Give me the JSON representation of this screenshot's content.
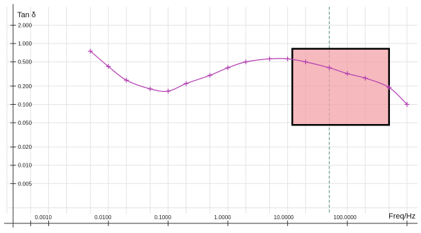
{
  "chart_data": {
    "type": "line",
    "x_scale": "log",
    "y_scale": "log",
    "ylabel": "Tan δ",
    "xlabel": "Freq/Hz",
    "grid": true,
    "x_tick_labels": [
      "0.0010",
      "0.0100",
      "0.1000",
      "1.0000",
      "10.0000",
      "100.0000"
    ],
    "x_tick_values": [
      0.001,
      0.01,
      0.1,
      1,
      10,
      100
    ],
    "y_tick_labels": [
      "2.000",
      "1.000",
      "0.500",
      "0.200",
      "0.100",
      "0.050",
      "0.020",
      "0.010",
      "0.005"
    ],
    "y_tick_values": [
      2,
      1,
      0.5,
      0.2,
      0.1,
      0.05,
      0.02,
      0.01,
      0.005
    ],
    "xlim": [
      0.0002,
      1500
    ],
    "ylim": [
      0.0016,
      4
    ],
    "colors": {
      "series": "#b13bb1",
      "grid": "#e3e3e3",
      "axis": "#333333",
      "marker_line": "#4a8f72",
      "highlight_fill": "#f2a2a8",
      "highlight_stroke": "#000000"
    },
    "series": [
      {
        "x": [
          0.005,
          0.01,
          0.02,
          0.05,
          0.1,
          0.2,
          0.5,
          1,
          2,
          5,
          10,
          20,
          50,
          100,
          200,
          500,
          1000
        ],
        "y": [
          0.75,
          0.42,
          0.25,
          0.18,
          0.165,
          0.22,
          0.3,
          0.4,
          0.5,
          0.56,
          0.56,
          0.5,
          0.4,
          0.32,
          0.27,
          0.19,
          0.1
        ]
      }
    ],
    "vertical_marker_x": 50,
    "highlight_box": {
      "x_range": [
        12,
        500
      ],
      "y_range": [
        0.046,
        0.82
      ]
    }
  }
}
